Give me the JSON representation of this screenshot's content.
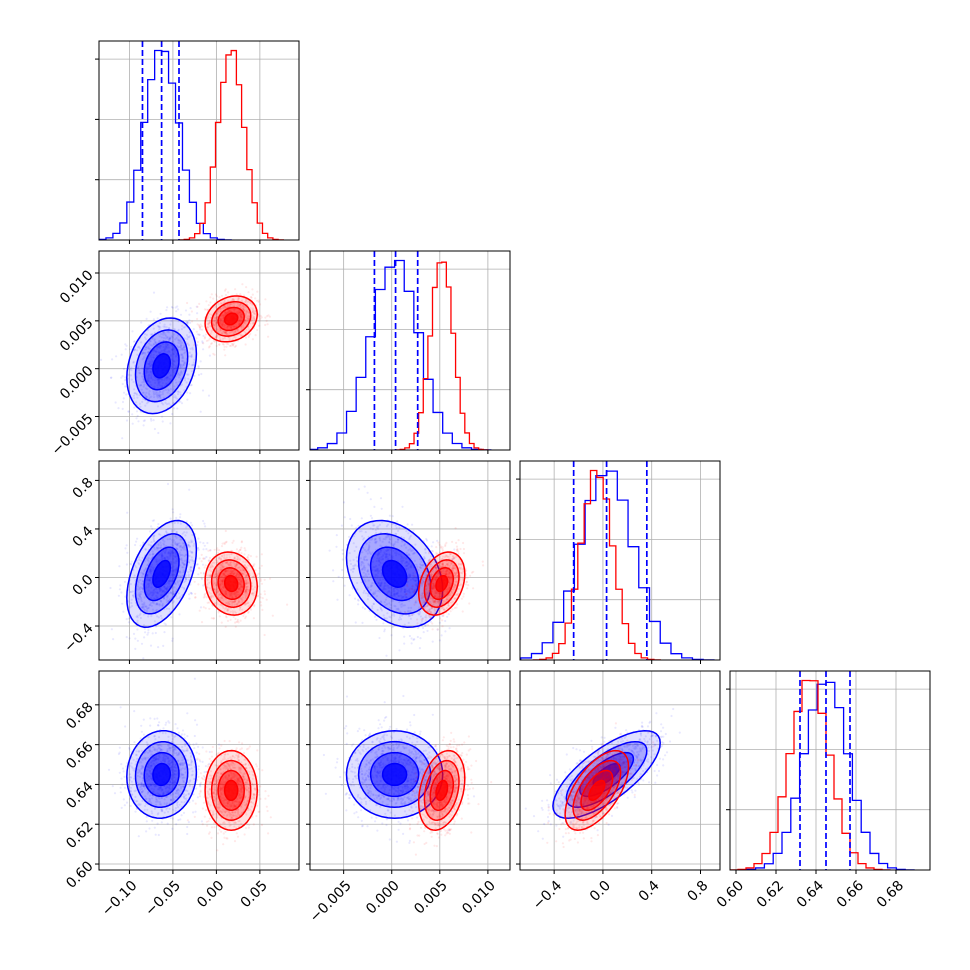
{
  "chart_data": {
    "type": "corner",
    "colors": {
      "series_a": "#0000ff",
      "series_b": "#ff0000",
      "grid": "#b0b0b0",
      "frame": "#000000"
    },
    "grid": true,
    "series": [
      {
        "color": "#0000ff",
        "means": [
          -0.063,
          0.0003,
          0.03,
          0.645
        ],
        "sds": [
          0.02,
          0.0025,
          0.22,
          0.011
        ],
        "corr": [
          [
            1,
            0.25,
            0.45,
            0.05
          ],
          [
            0.25,
            1,
            -0.3,
            0.0
          ],
          [
            0.45,
            -0.3,
            1,
            0.72
          ],
          [
            0.05,
            0.0,
            0.72,
            1
          ]
        ],
        "quantiles": [
          [
            -0.085,
            -0.063,
            -0.043
          ],
          [
            -0.0018,
            0.0004,
            0.0027
          ],
          [
            -0.24,
            0.03,
            0.36
          ],
          [
            0.632,
            0.645,
            0.657
          ]
        ]
      },
      {
        "color": "#ff0000",
        "means": [
          0.017,
          0.0052,
          -0.05,
          0.637
        ],
        "sds": [
          0.015,
          0.0012,
          0.13,
          0.01
        ],
        "corr": [
          [
            1,
            0.2,
            -0.1,
            0.0
          ],
          [
            0.2,
            1,
            0.3,
            0.3
          ],
          [
            -0.1,
            0.3,
            1,
            0.6
          ],
          [
            0.0,
            0.3,
            0.6,
            1
          ]
        ],
        "quantiles": null
      }
    ],
    "params": [
      {
        "range": [
          -0.135,
          0.095
        ],
        "ticks": [
          -0.1,
          -0.05,
          0.0,
          0.05
        ],
        "tick_labels": [
          "−0.10",
          "−0.05",
          "0.00",
          "0.05"
        ]
      },
      {
        "range": [
          -0.0085,
          0.0123
        ],
        "ticks": [
          -0.005,
          0.0,
          0.005,
          0.01
        ],
        "tick_labels": [
          "−0.005",
          "0.000",
          "0.005",
          "0.010"
        ]
      },
      {
        "range": [
          -0.68,
          0.96
        ],
        "ticks": [
          -0.4,
          0.0,
          0.4,
          0.8
        ],
        "tick_labels": [
          "−0.4",
          "0.0",
          "0.4",
          "0.8"
        ]
      },
      {
        "range": [
          0.597,
          0.697
        ],
        "ticks": [
          0.6,
          0.62,
          0.64,
          0.66,
          0.68
        ],
        "tick_labels": [
          "0.60",
          "0.62",
          "0.64",
          "0.66",
          "0.68"
        ]
      }
    ]
  }
}
